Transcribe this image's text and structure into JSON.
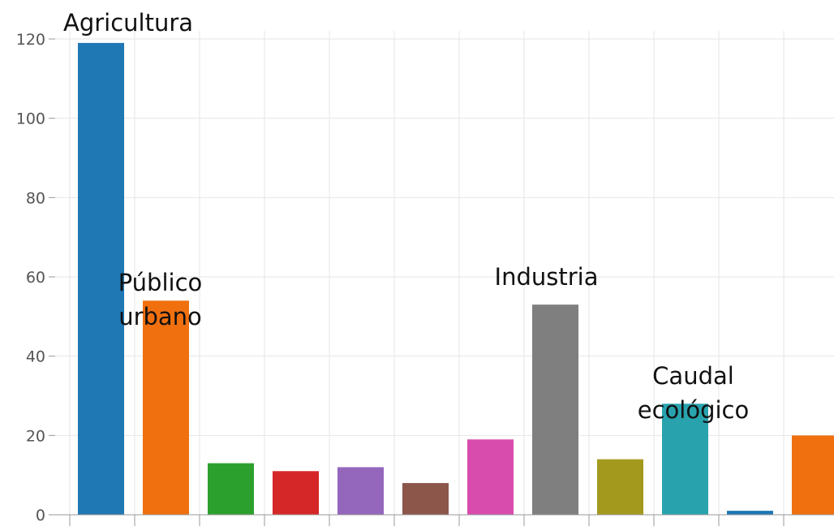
{
  "chart_data": {
    "type": "bar",
    "title": "",
    "xlabel": "",
    "ylabel": "",
    "ylim": [
      0,
      120
    ],
    "yticks": [
      0,
      20,
      40,
      60,
      80,
      100,
      120
    ],
    "grid": true,
    "legend": "none",
    "bars": [
      {
        "value": 119,
        "color": "#1f77b4"
      },
      {
        "value": 54,
        "color": "#f07010"
      },
      {
        "value": 13,
        "color": "#2ca02c"
      },
      {
        "value": 11,
        "color": "#d62728"
      },
      {
        "value": 12,
        "color": "#9467bd"
      },
      {
        "value": 8,
        "color": "#8c564b"
      },
      {
        "value": 19,
        "color": "#d84cae"
      },
      {
        "value": 53,
        "color": "#7f7f7f"
      },
      {
        "value": 14,
        "color": "#a39a1d"
      },
      {
        "value": 28,
        "color": "#28a3ae"
      },
      {
        "value": 1,
        "color": "#1f77b4"
      },
      {
        "value": 20,
        "color": "#f07010"
      }
    ],
    "annotations": [
      {
        "lines": [
          "Agricultura"
        ],
        "bar": 0
      },
      {
        "lines": [
          "Público",
          "urbano"
        ],
        "bar": 1
      },
      {
        "lines": [
          "Industria"
        ],
        "bar": 7
      },
      {
        "lines": [
          "Caudal",
          "ecológico"
        ],
        "bar": 9
      }
    ]
  }
}
